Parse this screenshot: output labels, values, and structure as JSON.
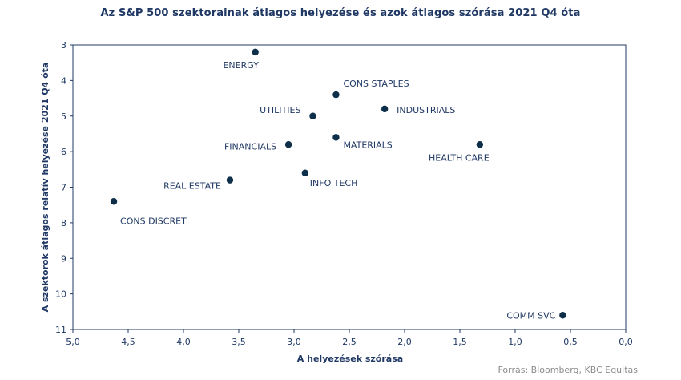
{
  "chart_data": {
    "type": "scatter",
    "title": "Az S&P 500 szektorainak átlagos helyezése  és azok átlagos szórása 2021 Q4 óta",
    "xlabel": "A helyezések  szórása",
    "ylabel": "A szektorok  átlagos relatív helyezése  2021 Q4 óta",
    "xlim": [
      5.0,
      0.0
    ],
    "ylim": [
      11,
      3
    ],
    "x_reversed": true,
    "y_reversed": true,
    "x_ticks": [
      "5,0",
      "4,5",
      "4,0",
      "3,5",
      "3,0",
      "2,5",
      "2,0",
      "1,5",
      "1,0",
      "0,5",
      "0,0"
    ],
    "y_ticks": [
      "3",
      "4",
      "5",
      "6",
      "7",
      "8",
      "9",
      "10",
      "11"
    ],
    "grid": false,
    "marker_color": "#0d2f4a",
    "points": [
      {
        "label": "ENERGY",
        "x": 3.35,
        "y": 3.2
      },
      {
        "label": "CONS STAPLES",
        "x": 2.62,
        "y": 4.4
      },
      {
        "label": "INDUSTRIALS",
        "x": 2.18,
        "y": 4.8
      },
      {
        "label": "UTILITIES",
        "x": 2.83,
        "y": 5.0
      },
      {
        "label": "MATERIALS",
        "x": 2.62,
        "y": 5.6
      },
      {
        "label": "FINANCIALS",
        "x": 3.05,
        "y": 5.8
      },
      {
        "label": "HEALTH CARE",
        "x": 1.32,
        "y": 5.8
      },
      {
        "label": "INFO TECH",
        "x": 2.9,
        "y": 6.6
      },
      {
        "label": "REAL ESTATE",
        "x": 3.58,
        "y": 6.8
      },
      {
        "label": "CONS DISCRET",
        "x": 4.63,
        "y": 7.4
      },
      {
        "label": "COMM SVC",
        "x": 0.57,
        "y": 10.6
      }
    ]
  },
  "source": "Forrás: Bloomberg,  KBC Equitas"
}
